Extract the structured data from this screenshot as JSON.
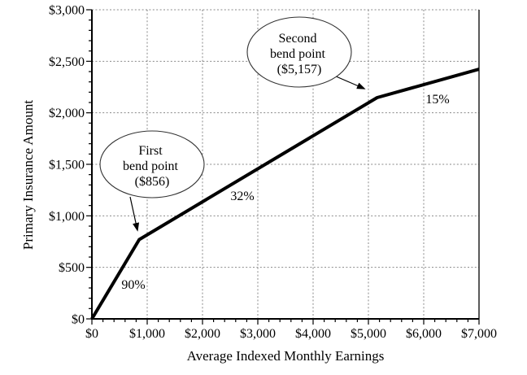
{
  "chart_data": {
    "type": "line",
    "title": "",
    "xlabel": "Average Indexed Monthly Earnings",
    "ylabel": "Primary Insurance Amount",
    "xlim": [
      0,
      7000
    ],
    "ylim": [
      0,
      3000
    ],
    "grid": "dotted-gray-major",
    "legend": "none",
    "x_ticks": {
      "values": [
        0,
        1000,
        2000,
        3000,
        4000,
        5000,
        6000,
        7000
      ],
      "labels": [
        "$0",
        "$1,000",
        "$2,000",
        "$3,000",
        "$4,000",
        "$5,000",
        "$6,000",
        "$7,000"
      ],
      "minor_step": 200
    },
    "y_ticks": {
      "values": [
        0,
        500,
        1000,
        1500,
        2000,
        2500,
        3000
      ],
      "labels": [
        "$0",
        "$500",
        "$1,000",
        "$1,500",
        "$2,000",
        "$2,500",
        "$3,000"
      ],
      "minor_step": 100
    },
    "series": [
      {
        "name": "Primary Insurance Amount formula",
        "points": [
          [
            0,
            0
          ],
          [
            856,
            770
          ],
          [
            5157,
            2147
          ],
          [
            7000,
            2423
          ]
        ]
      }
    ],
    "segment_labels": [
      "90%",
      "32%",
      "15%"
    ],
    "annotations": [
      {
        "lines": [
          "First",
          "bend point",
          "($856)"
        ],
        "points_to_x": 856
      },
      {
        "lines": [
          "Second",
          "bend point",
          "($5,157)"
        ],
        "points_to_x": 5157
      }
    ],
    "colors": {
      "line": "#000000",
      "axis": "#000000",
      "gridline": "#888888",
      "background": "#ffffff",
      "callout_fill": "#ffffff",
      "callout_stroke": "#333333"
    }
  }
}
